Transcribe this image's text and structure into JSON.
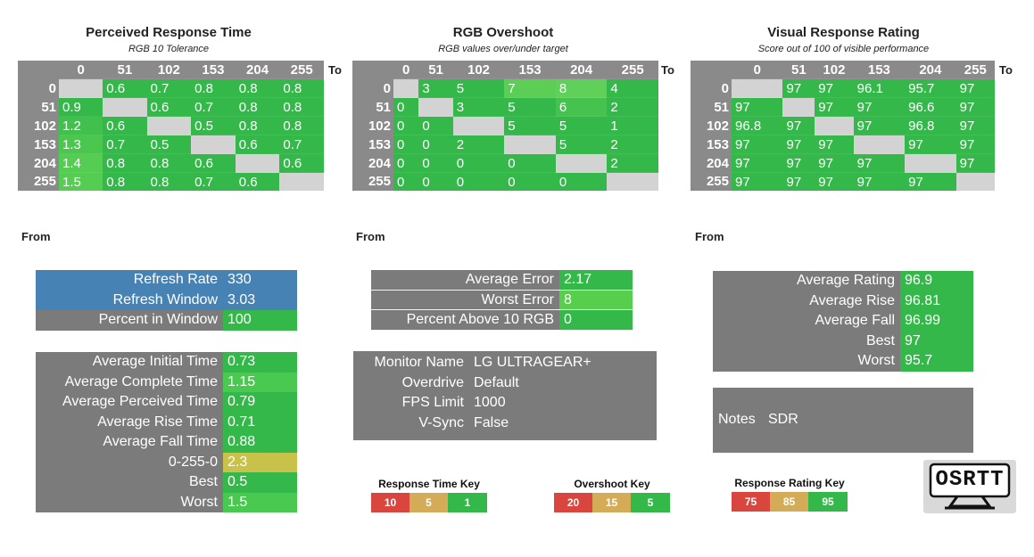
{
  "colors": {
    "grey": "#7b7b7b",
    "header_grey": "#8a8a8a",
    "empty": "#d3d3d3",
    "green": "#34b849",
    "light_green": "#58cf4c",
    "blue": "#4682b4",
    "yellow": "#c9c24a",
    "red": "#d9463e",
    "tan": "#d4ac58"
  },
  "axis": {
    "to": "To",
    "from": "From"
  },
  "matrices": [
    {
      "title": "Perceived Response Time",
      "subtitle": "RGB 10 Tolerance",
      "cols": [
        "0",
        "51",
        "102",
        "153",
        "204",
        "255"
      ],
      "rows": [
        {
          "label": "0",
          "cells": [
            "",
            "0.6",
            "0.7",
            "0.8",
            "0.8",
            "0.8"
          ]
        },
        {
          "label": "51",
          "cells": [
            "0.9",
            "",
            "0.6",
            "0.7",
            "0.8",
            "0.8"
          ]
        },
        {
          "label": "102",
          "cells": [
            "1.2",
            "0.6",
            "",
            "0.5",
            "0.8",
            "0.8"
          ]
        },
        {
          "label": "153",
          "cells": [
            "1.3",
            "0.7",
            "0.5",
            "",
            "0.6",
            "0.7"
          ]
        },
        {
          "label": "204",
          "cells": [
            "1.4",
            "0.8",
            "0.8",
            "0.6",
            "",
            "0.6"
          ]
        },
        {
          "label": "255",
          "cells": [
            "1.5",
            "0.8",
            "0.8",
            "0.7",
            "0.6",
            ""
          ]
        }
      ]
    },
    {
      "title": "RGB Overshoot",
      "subtitle": "RGB values over/under target",
      "cols": [
        "0",
        "51",
        "102",
        "153",
        "204",
        "255"
      ],
      "rows": [
        {
          "label": "0",
          "cells": [
            "",
            "3",
            "5",
            "7",
            "8",
            "4"
          ]
        },
        {
          "label": "51",
          "cells": [
            "0",
            "",
            "3",
            "5",
            "6",
            "2"
          ]
        },
        {
          "label": "102",
          "cells": [
            "0",
            "0",
            "",
            "5",
            "5",
            "1"
          ]
        },
        {
          "label": "153",
          "cells": [
            "0",
            "0",
            "2",
            "",
            "5",
            "2"
          ]
        },
        {
          "label": "204",
          "cells": [
            "0",
            "0",
            "0",
            "0",
            "",
            "2"
          ]
        },
        {
          "label": "255",
          "cells": [
            "0",
            "0",
            "0",
            "0",
            "0",
            ""
          ]
        }
      ]
    },
    {
      "title": "Visual Response Rating",
      "subtitle": "Score out of 100 of visible performance",
      "cols": [
        "0",
        "51",
        "102",
        "153",
        "204",
        "255"
      ],
      "rows": [
        {
          "label": "0",
          "cells": [
            "",
            "97",
            "97",
            "96.1",
            "95.7",
            "97"
          ]
        },
        {
          "label": "51",
          "cells": [
            "97",
            "",
            "97",
            "97",
            "96.6",
            "97"
          ]
        },
        {
          "label": "102",
          "cells": [
            "96.8",
            "97",
            "",
            "97",
            "96.8",
            "97"
          ]
        },
        {
          "label": "153",
          "cells": [
            "97",
            "97",
            "97",
            "",
            "97",
            "97"
          ]
        },
        {
          "label": "204",
          "cells": [
            "97",
            "97",
            "97",
            "97",
            "",
            "97"
          ]
        },
        {
          "label": "255",
          "cells": [
            "97",
            "97",
            "97",
            "97",
            "97",
            ""
          ]
        }
      ]
    }
  ],
  "refresh": [
    {
      "label": "Refresh Rate",
      "value": "330"
    },
    {
      "label": "Refresh Window",
      "value": "3.03"
    },
    {
      "label": "Percent in Window",
      "value": "100"
    }
  ],
  "times": [
    {
      "label": "Average Initial Time",
      "value": "0.73"
    },
    {
      "label": "Average Complete Time",
      "value": "1.15"
    },
    {
      "label": "Average Perceived Time",
      "value": "0.79"
    },
    {
      "label": "Average Rise Time",
      "value": "0.71"
    },
    {
      "label": "Average Fall Time",
      "value": "0.88"
    },
    {
      "label": "0-255-0",
      "value": "2.3"
    },
    {
      "label": "Best",
      "value": "0.5"
    },
    {
      "label": "Worst",
      "value": "1.5"
    }
  ],
  "errors": [
    {
      "label": "Average Error",
      "value": "2.17"
    },
    {
      "label": "Worst Error",
      "value": "8"
    },
    {
      "label": "Percent Above 10 RGB",
      "value": "0"
    }
  ],
  "monitor": [
    {
      "label": "Monitor Name",
      "value": "LG ULTRAGEAR+"
    },
    {
      "label": "Overdrive",
      "value": "Default"
    },
    {
      "label": "FPS Limit",
      "value": "1000"
    },
    {
      "label": "V-Sync",
      "value": "False"
    }
  ],
  "ratings": [
    {
      "label": "Average Rating",
      "value": "96.9"
    },
    {
      "label": "Average Rise",
      "value": "96.81"
    },
    {
      "label": "Average Fall",
      "value": "96.99"
    },
    {
      "label": "Best",
      "value": "97"
    },
    {
      "label": "Worst",
      "value": "95.7"
    }
  ],
  "notes": {
    "label": "Notes",
    "value": "SDR"
  },
  "keys": [
    {
      "title": "Response Time Key",
      "values": [
        "10",
        "5",
        "1"
      ]
    },
    {
      "title": "Overshoot Key",
      "values": [
        "20",
        "15",
        "5"
      ]
    },
    {
      "title": "Response Rating Key",
      "values": [
        "75",
        "85",
        "95"
      ]
    }
  ],
  "logo": {
    "text": "OSRTT",
    "icon": "monitor-logo-icon"
  }
}
